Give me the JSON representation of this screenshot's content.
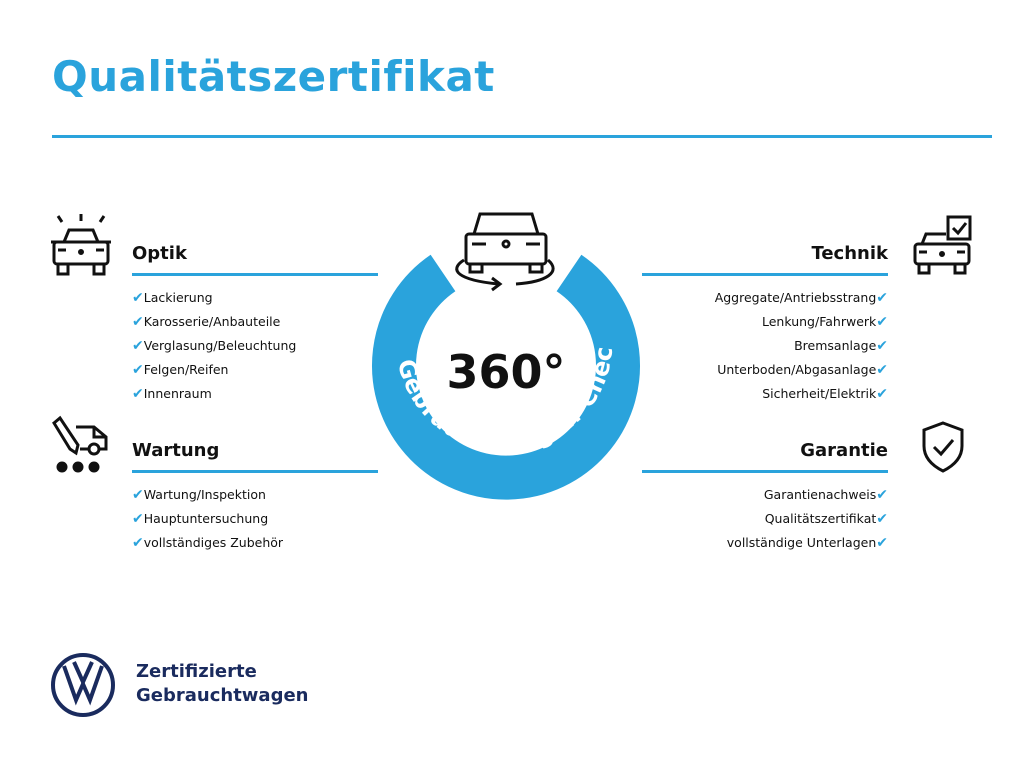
{
  "title": "Qualitätszertifikat",
  "center": {
    "degrees": "360°",
    "ring_text": "Gebrauchtwagen-Check"
  },
  "accent_color": "#2aa3dc",
  "check_icon": "✔",
  "sections": {
    "optik": {
      "title": "Optik",
      "icon": "car-lights-icon",
      "items": [
        "Lackierung",
        "Karosserie/Anbauteile",
        "Verglasung/Beleuchtung",
        "Felgen/Reifen",
        "Innenraum"
      ]
    },
    "wartung": {
      "title": "Wartung",
      "icon": "car-service-icon",
      "items": [
        "Wartung/Inspektion",
        "Hauptuntersuchung",
        "vollständiges Zubehör"
      ]
    },
    "technik": {
      "title": "Technik",
      "icon": "car-checklist-icon",
      "items": [
        "Aggregate/Antriebsstrang",
        "Lenkung/Fahrwerk",
        "Bremsanlage",
        "Unterboden/Abgasanlage",
        "Sicherheit/Elektrik"
      ]
    },
    "garantie": {
      "title": "Garantie",
      "icon": "shield-check-icon",
      "items": [
        "Garantienachweis",
        "Qualitätszertifikat",
        "vollständige Unterlagen"
      ]
    }
  },
  "footer": {
    "line1": "Zertifizierte",
    "line2": "Gebrauchtwagen"
  }
}
